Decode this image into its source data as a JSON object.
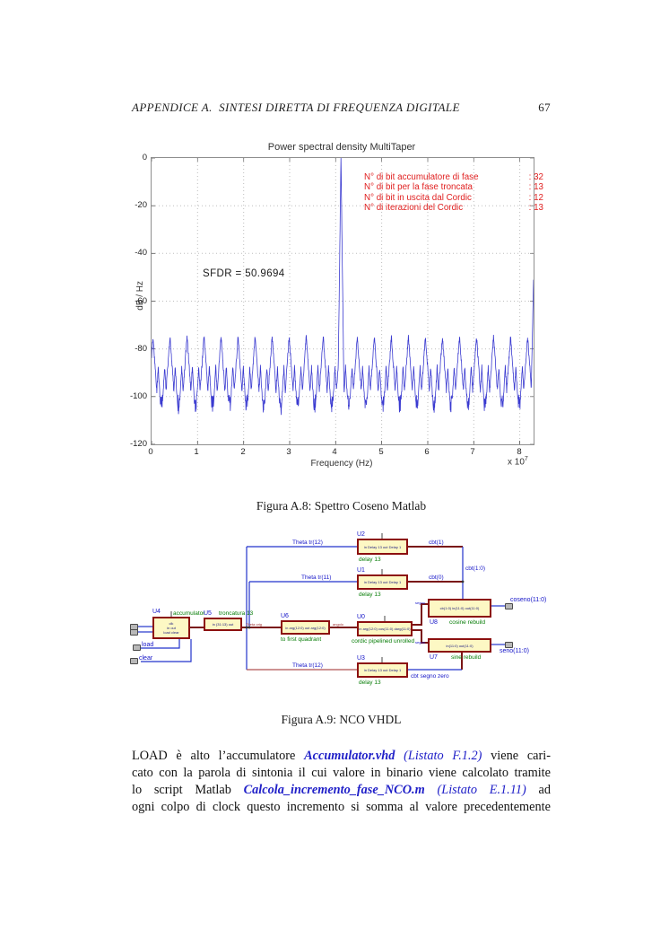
{
  "header": {
    "title": "APPENDICE A.  SINTESI DIRETTA DI FREQUENZA DIGITALE",
    "page_number": "67"
  },
  "chart_data": {
    "type": "line",
    "title": "Power spectral density MultiTaper",
    "xlabel": "Frequency (Hz)",
    "xlabel_multiplier": "x 10",
    "xlabel_multiplier_exp": "7",
    "ylabel": "dB / Hz",
    "xlim": [
      0,
      8.3
    ],
    "ylim": [
      -120,
      0
    ],
    "xticks": [
      0,
      1,
      2,
      3,
      4,
      5,
      6,
      7,
      8
    ],
    "yticks": [
      0,
      -20,
      -40,
      -60,
      -80,
      -100,
      -120
    ],
    "grid": "dotted",
    "line_color": "#3a3ad0",
    "sfdr_label": "SFDR = 50.9694",
    "annotation_color": "#e02020",
    "annotations": [
      {
        "label": "N° di bit accumulatore di fase",
        "value": ": 32"
      },
      {
        "label": "N° di bit per la fase troncata",
        "value": ": 13"
      },
      {
        "label": "N° di bit in uscita dal Cordic",
        "value": ": 12"
      },
      {
        "label": "N° di iterazioni del Cordic",
        "value": ": 13"
      }
    ],
    "signal": {
      "description": "Periodic spurs every ~0.37e7 Hz peaking near -74 dB/Hz over a noise floor near -103 dB/Hz; main carrier at ~4.12e7 Hz reaching 0 dB/Hz; partial spur at the right edge (8.3e7 Hz) reaching ~-51 dB/Hz; SFDR = 50.9694 dB.",
      "noise_floor": -103,
      "noise_amp": 4,
      "spur_start": 0.03,
      "spur_spacing": 0.37,
      "spur_peak": -73.5,
      "main_peak": {
        "x": 4.115,
        "db": 0
      },
      "edge_peak": {
        "x": 8.3,
        "db": -51
      }
    }
  },
  "figure8": {
    "caption": "Figura A.8: Spettro Coseno Matlab"
  },
  "figure9": {
    "caption": "Figura A.9: NCO VHDL"
  },
  "diagram": {
    "blocks": [
      {
        "id": "U4",
        "sub": "accumulator",
        "inner": "clk\nin out\nload clear"
      },
      {
        "id": "U5",
        "sub": "troncatura 13",
        "inner": "in (31:13) out"
      },
      {
        "id": "U6",
        "sub": "to first quadrant",
        "inner": "in arg(12:0) out arg(12:0)"
      },
      {
        "id": "U0",
        "sub": "cordic pipelined unrolled",
        "inner": "in arg(12:0) cos(11:0) darg(11:0)"
      },
      {
        "id": "U2",
        "sub": "delay 13",
        "inner": "in Delay 13 out Delay 1"
      },
      {
        "id": "U1",
        "sub": "delay 13",
        "inner": "in Delay 13 out Delay 1"
      },
      {
        "id": "U3",
        "sub": "delay 13",
        "inner": "in Delay 13 out Delay 1"
      },
      {
        "id": "U8",
        "sub": "cosine rebuild",
        "inner": "cb(1:0) in(11:0) out(11:0)"
      },
      {
        "id": "U7",
        "sub": "sine rebuild",
        "inner": "in(11:0) out(11:0)"
      }
    ],
    "wire_labels": [
      {
        "text": "Theta tr(12)",
        "kind": "net"
      },
      {
        "text": "Theta tr(11)",
        "kind": "net"
      },
      {
        "text": "Theta tr(12)",
        "kind": "net"
      },
      {
        "text": "cbt(1)",
        "kind": "net"
      },
      {
        "text": "cbt(0)",
        "kind": "net"
      },
      {
        "text": "cbt(1:0)",
        "kind": "net"
      },
      {
        "text": "cbt segno zero",
        "kind": "net"
      },
      {
        "text": "coseno(11:0)",
        "kind": "io"
      },
      {
        "text": "seno(11:0)",
        "kind": "io"
      },
      {
        "text": "load",
        "kind": "io"
      },
      {
        "text": "clear",
        "kind": "io"
      },
      {
        "text": "Theta orig",
        "kind": "tinyr"
      },
      {
        "text": "angolo",
        "kind": "tinyr"
      },
      {
        "text": "segno",
        "kind": "tinyb"
      },
      {
        "text": "segno",
        "kind": "tinyb"
      }
    ]
  },
  "paragraph": {
    "lines": [
      {
        "runs": [
          {
            "t": "LOAD è alto l’accumulatore ",
            "s": "n"
          },
          {
            "t": "Accumulator.vhd",
            "s": "f"
          },
          {
            "t": " (Listato F.1.2)",
            "s": "r"
          },
          {
            "t": " viene cari-",
            "s": "n"
          }
        ]
      },
      {
        "runs": [
          {
            "t": "cato con la parola di sintonia il cui valore in binario viene calcolato tramite",
            "s": "n"
          }
        ]
      },
      {
        "runs": [
          {
            "t": "lo script Matlab ",
            "s": "n"
          },
          {
            "t": "Calcola_incremento_fase_NCO.m",
            "s": "f"
          },
          {
            "t": " (Listato E.1.11)",
            "s": "r"
          },
          {
            "t": " ad",
            "s": "n"
          }
        ]
      },
      {
        "runs": [
          {
            "t": "ogni colpo di clock questo incremento si somma al valore precedentemente",
            "s": "n"
          }
        ]
      }
    ]
  }
}
